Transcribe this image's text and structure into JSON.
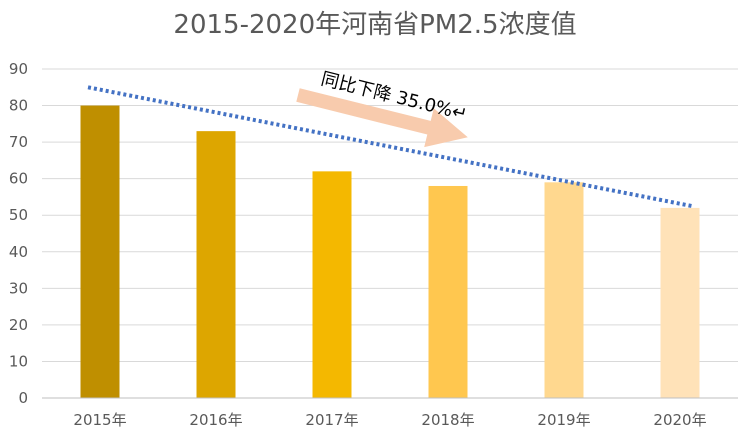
{
  "chart_data": {
    "type": "bar",
    "title": "2015-2020年河南省PM2.5浓度值",
    "categories": [
      "2015年",
      "2016年",
      "2017年",
      "2018年",
      "2019年",
      "2020年"
    ],
    "values": [
      80,
      73,
      62,
      58,
      59,
      52
    ],
    "ylim": [
      0,
      90
    ],
    "y_ticks": [
      0,
      10,
      20,
      30,
      40,
      50,
      60,
      70,
      80,
      90
    ],
    "grid": true,
    "legend": "none",
    "bar_colors": [
      "#BF8F00",
      "#DDA600",
      "#F4B800",
      "#FFC74F",
      "#FFD88F",
      "#FFE2B8"
    ],
    "trendline": {
      "style": "dotted",
      "color": "#4472C4",
      "start": 85,
      "end": 52.5
    },
    "annotation": {
      "text": "同比下降 35.0%↵",
      "arrow_color": "#F8CBAD"
    }
  }
}
